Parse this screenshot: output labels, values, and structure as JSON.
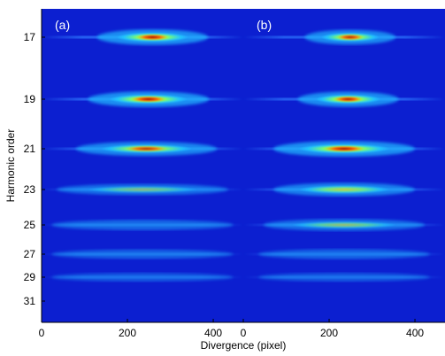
{
  "panels": [
    {
      "label": "(a)",
      "x_ticks": [
        "0",
        "200",
        "400"
      ],
      "bands": [
        {
          "order": 17,
          "intensity": 0.95,
          "width": 0.55,
          "center": 0.55
        },
        {
          "order": 19,
          "intensity": 0.95,
          "width": 0.6,
          "center": 0.53
        },
        {
          "order": 21,
          "intensity": 0.8,
          "width": 0.7,
          "center": 0.52
        },
        {
          "order": 23,
          "intensity": 0.45,
          "width": 0.85,
          "center": 0.5
        },
        {
          "order": 25,
          "intensity": 0.35,
          "width": 0.9,
          "center": 0.5
        },
        {
          "order": 27,
          "intensity": 0.25,
          "width": 0.9,
          "center": 0.5
        },
        {
          "order": 29,
          "intensity": 0.15,
          "width": 0.9,
          "center": 0.5
        }
      ]
    },
    {
      "label": "(b)",
      "x_ticks": [
        "0",
        "200",
        "400"
      ],
      "bands": [
        {
          "order": 17,
          "intensity": 0.85,
          "width": 0.45,
          "center": 0.53
        },
        {
          "order": 19,
          "intensity": 0.9,
          "width": 0.5,
          "center": 0.52
        },
        {
          "order": 21,
          "intensity": 0.95,
          "width": 0.7,
          "center": 0.5
        },
        {
          "order": 23,
          "intensity": 0.7,
          "width": 0.7,
          "center": 0.5
        },
        {
          "order": 25,
          "intensity": 0.5,
          "width": 0.8,
          "center": 0.5
        },
        {
          "order": 27,
          "intensity": 0.3,
          "width": 0.85,
          "center": 0.5
        },
        {
          "order": 29,
          "intensity": 0.15,
          "width": 0.85,
          "center": 0.5
        }
      ]
    }
  ],
  "y_axis": {
    "label": "Harmonic order",
    "ticks": [
      "17",
      "19",
      "21",
      "23",
      "25",
      "27",
      "29",
      "31"
    ]
  },
  "x_axis": {
    "label": "Divergence (pixel)"
  },
  "colors": {
    "background": "#0c1fd0",
    "colormap": [
      "#0c1fd0",
      "#1e60ff",
      "#21c8ff",
      "#7fff7f",
      "#ffe800",
      "#ff6a00",
      "#b00000"
    ]
  }
}
